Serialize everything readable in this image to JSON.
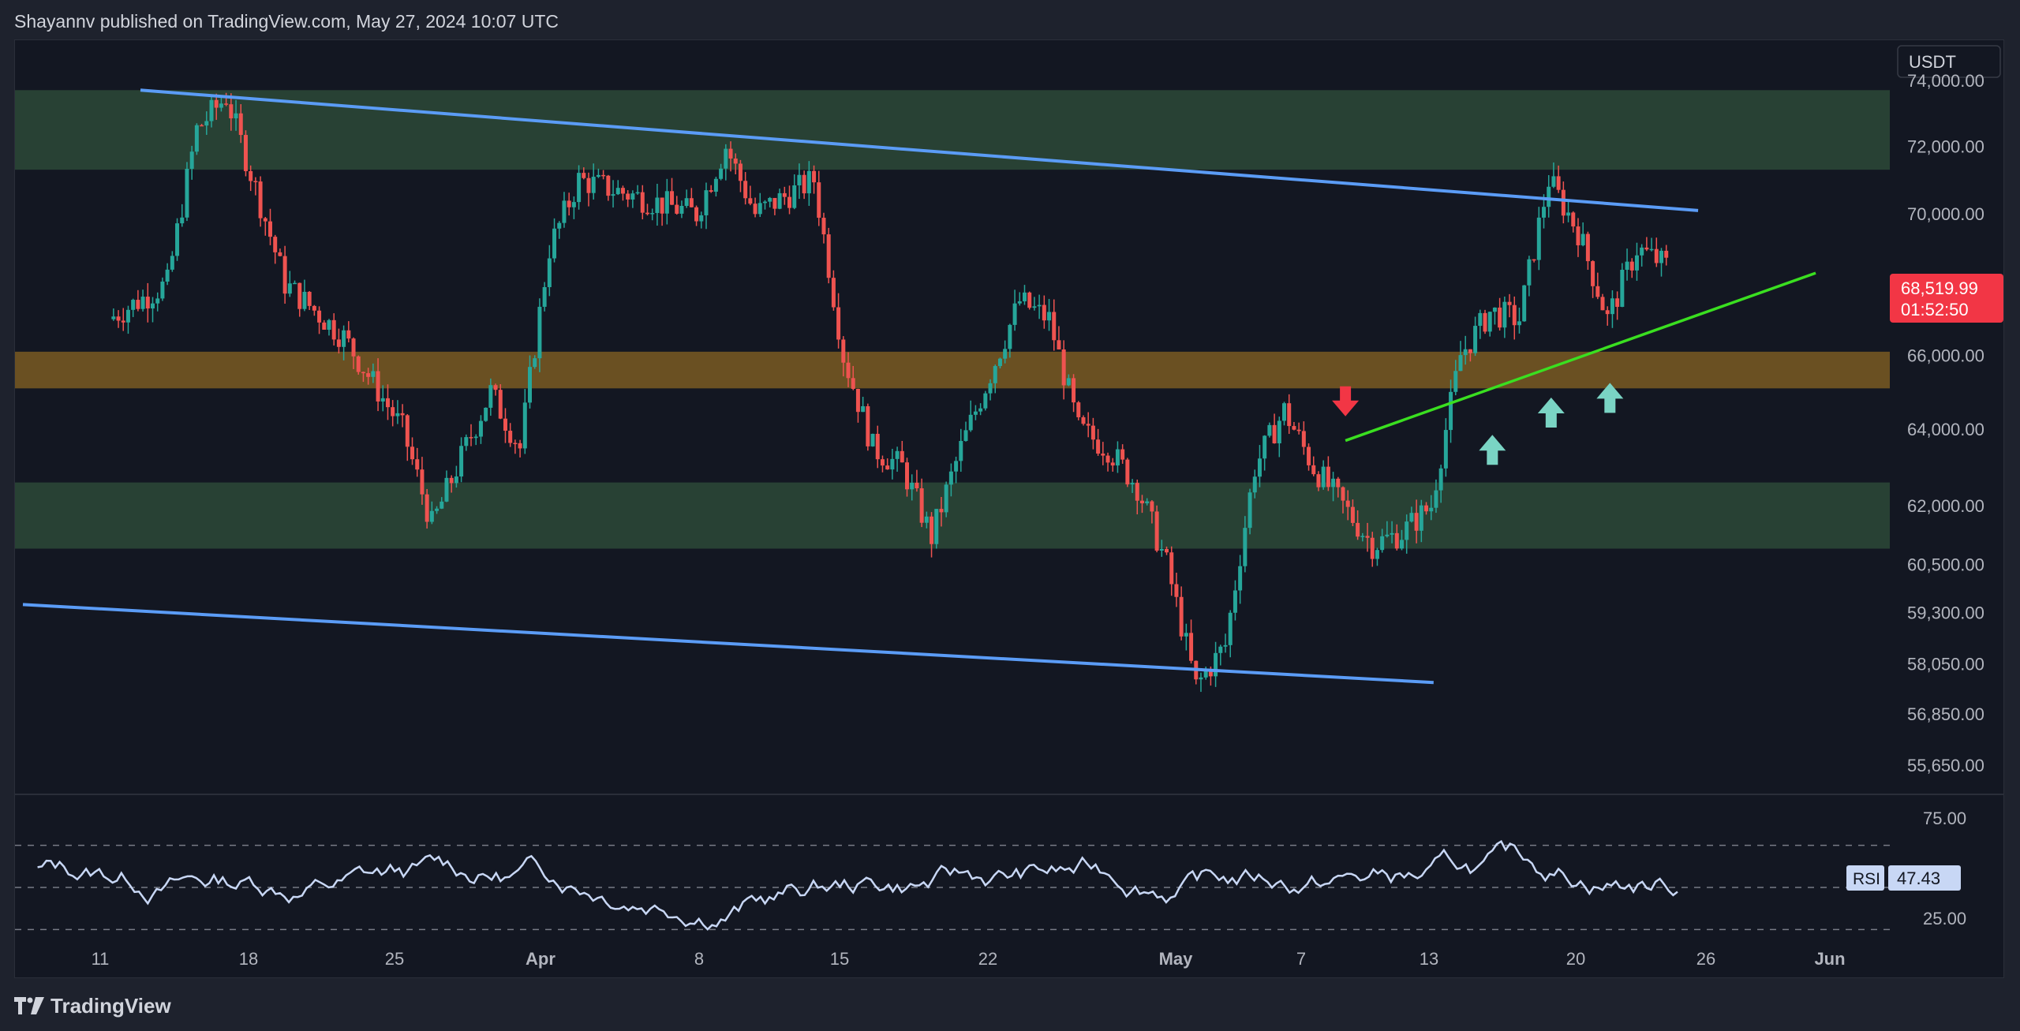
{
  "header": {
    "published_text": "Shayannv published on TradingView.com, May 27, 2024 10:07 UTC"
  },
  "footer": {
    "brand": "TradingView",
    "logo_icon": "tradingview-logo-icon"
  },
  "price_scale": {
    "currency": "USDT",
    "ticks": [
      "74,000.00",
      "72,000.00",
      "70,000.00",
      "66,000.00",
      "64,000.00",
      "62,000.00",
      "60,500.00",
      "59,300.00",
      "58,050.00",
      "56,850.00",
      "55,650.00"
    ],
    "last_price": "68,519.99",
    "countdown": "01:52:50",
    "last_price_color": "#f23645"
  },
  "rsi_scale": {
    "ticks": [
      "75.00",
      "25.00"
    ],
    "label": "RSI",
    "value": "47.43"
  },
  "time_axis": {
    "labels": [
      "11",
      "18",
      "25",
      "Apr",
      "8",
      "15",
      "22",
      "May",
      "7",
      "13",
      "20",
      "26",
      "Jun"
    ]
  },
  "colors": {
    "background": "#131722",
    "up": "#26a69a",
    "down": "#ef5350",
    "channel_line": "#5b9cf6",
    "trend_line": "#3adf20",
    "supply_zone": "#2b4636",
    "support_zone": "#7a5a22",
    "rsi_line": "#c8d7f5",
    "arrow_up": "#7ad4c4",
    "arrow_down": "#f23645"
  },
  "chart_data": {
    "type": "candlestick",
    "title": "",
    "y_scale": "log",
    "ylim": [
      55000,
      75000
    ],
    "x_labels": [
      "11",
      "18",
      "25",
      "Apr",
      "8",
      "15",
      "22",
      "May",
      "7",
      "13",
      "20",
      "26",
      "Jun"
    ],
    "zones": [
      {
        "name": "upper-zone",
        "from": 71300,
        "to": 73700
      },
      {
        "name": "middle-zone",
        "from": 65100,
        "to": 66100
      },
      {
        "name": "lower-zone",
        "from": 60900,
        "to": 62600
      }
    ],
    "channel_lines": [
      {
        "points": [
          [
            1,
            73700
          ],
          [
            54,
            70100
          ]
        ]
      },
      {
        "points": [
          [
            -3,
            59500
          ],
          [
            45,
            57600
          ]
        ]
      }
    ],
    "trend_line": {
      "points": [
        [
          42,
          63700
        ],
        [
          58,
          68300
        ]
      ]
    },
    "key_points": [
      {
        "x": 0,
        "close": 67000
      },
      {
        "x": 2,
        "close": 68000
      },
      {
        "x": 3,
        "close": 72500
      },
      {
        "x": 4,
        "close": 73500
      },
      {
        "x": 6,
        "close": 68000
      },
      {
        "x": 8,
        "close": 66500
      },
      {
        "x": 10,
        "close": 64000
      },
      {
        "x": 11,
        "close": 61500
      },
      {
        "x": 13,
        "close": 65000
      },
      {
        "x": 14,
        "close": 63500
      },
      {
        "x": 15,
        "close": 69000
      },
      {
        "x": 16,
        "close": 71000
      },
      {
        "x": 18,
        "close": 70500
      },
      {
        "x": 20,
        "close": 70000
      },
      {
        "x": 21,
        "close": 72000
      },
      {
        "x": 22,
        "close": 70000
      },
      {
        "x": 23,
        "close": 70500
      },
      {
        "x": 24,
        "close": 71000
      },
      {
        "x": 25,
        "close": 66000
      },
      {
        "x": 26,
        "close": 63500
      },
      {
        "x": 27,
        "close": 63000
      },
      {
        "x": 28,
        "close": 61200
      },
      {
        "x": 29,
        "close": 63500
      },
      {
        "x": 30,
        "close": 65500
      },
      {
        "x": 31,
        "close": 67500
      },
      {
        "x": 32,
        "close": 67000
      },
      {
        "x": 33,
        "close": 64000
      },
      {
        "x": 34,
        "close": 63500
      },
      {
        "x": 35,
        "close": 62500
      },
      {
        "x": 36,
        "close": 60500
      },
      {
        "x": 37,
        "close": 57500
      },
      {
        "x": 38,
        "close": 58500
      },
      {
        "x": 39,
        "close": 63000
      },
      {
        "x": 40,
        "close": 64500
      },
      {
        "x": 41,
        "close": 63000
      },
      {
        "x": 42,
        "close": 62000
      },
      {
        "x": 43,
        "close": 61000
      },
      {
        "x": 44,
        "close": 61300
      },
      {
        "x": 45,
        "close": 62000
      },
      {
        "x": 46,
        "close": 66000
      },
      {
        "x": 47,
        "close": 67200
      },
      {
        "x": 48,
        "close": 67000
      },
      {
        "x": 49,
        "close": 71000
      },
      {
        "x": 50,
        "close": 69500
      },
      {
        "x": 51,
        "close": 67000
      },
      {
        "x": 52,
        "close": 69000
      },
      {
        "x": 53,
        "close": 68520
      }
    ],
    "rsi": {
      "ylim": [
        0,
        100
      ],
      "levels": [
        75,
        50,
        25
      ],
      "last": 47.43
    },
    "annotations": [
      {
        "type": "arrow-down",
        "x": 42,
        "price": 64200
      },
      {
        "type": "arrow-up",
        "x": 47,
        "price": 64000
      },
      {
        "type": "arrow-up",
        "x": 49,
        "price": 65000
      },
      {
        "type": "arrow-up",
        "x": 51,
        "price": 65400
      }
    ]
  }
}
